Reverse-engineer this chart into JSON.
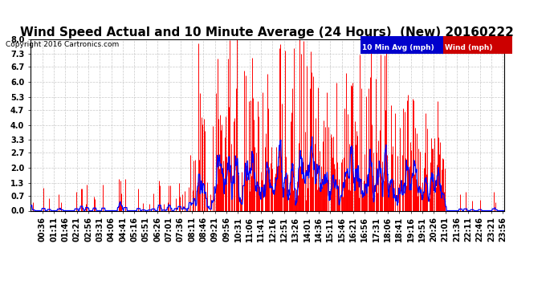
{
  "title": "Wind Speed Actual and 10 Minute Average (24 Hours)  (New) 20160222",
  "copyright": "Copyright 2016 Cartronics.com",
  "yticks": [
    0.0,
    0.7,
    1.3,
    2.0,
    2.7,
    3.3,
    4.0,
    4.7,
    5.3,
    6.0,
    6.7,
    7.3,
    8.0
  ],
  "ylim": [
    0.0,
    8.0
  ],
  "bg_color": "#ffffff",
  "plot_bg": "#ffffff",
  "grid_color": "#bbbbbb",
  "title_fontsize": 11,
  "tick_fontsize": 7,
  "bar_color": "#ff0000",
  "line_color": "#0000ff",
  "legend_blue_bg": "#0000cc",
  "legend_red_bg": "#cc0000"
}
